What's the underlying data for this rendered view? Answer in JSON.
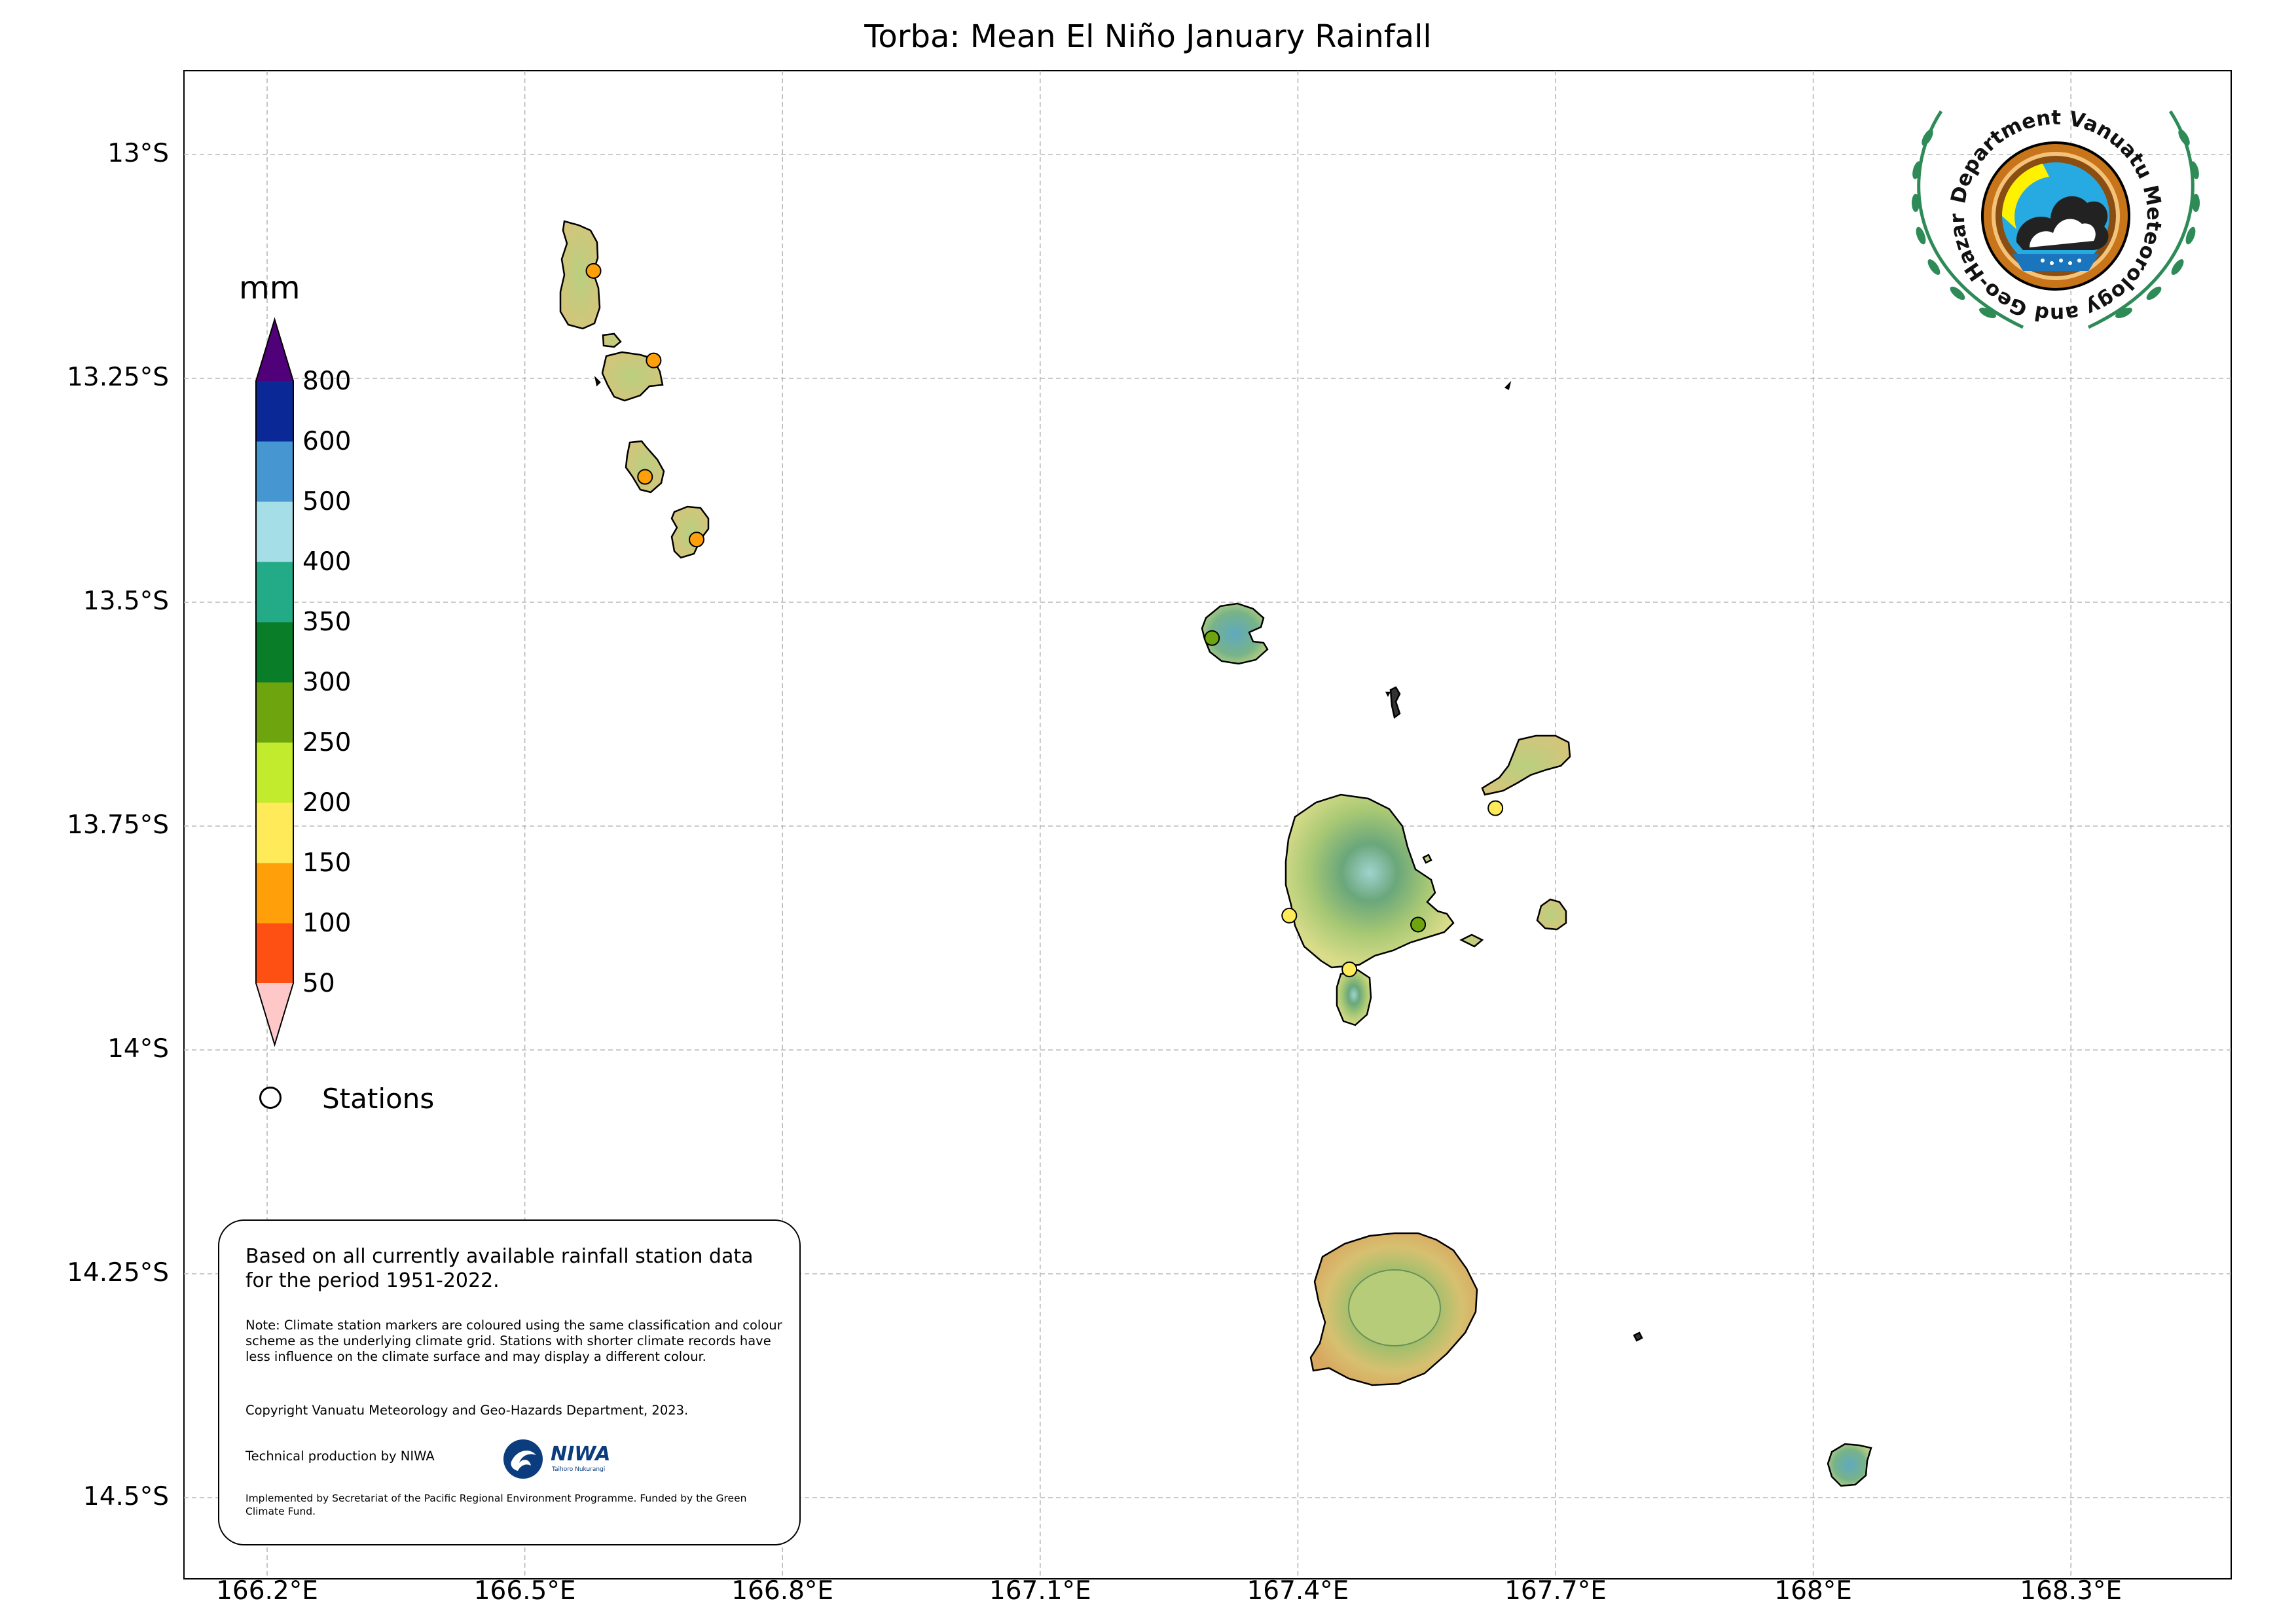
{
  "title": "Torba: Mean El Niño January Rainfall",
  "axes": {
    "lat_ticks": [
      "13°S",
      "13.25°S",
      "13.5°S",
      "13.75°S",
      "14°S",
      "14.25°S",
      "14.5°S"
    ],
    "lon_ticks": [
      "166.2°E",
      "166.5°E",
      "166.8°E",
      "167.1°E",
      "167.4°E",
      "167.7°E",
      "168°E",
      "168.3°E"
    ],
    "lat_values": [
      -13.0,
      -13.25,
      -13.5,
      -13.75,
      -14.0,
      -14.25,
      -14.5
    ],
    "lon_values": [
      166.2,
      166.5,
      166.8,
      167.1,
      167.4,
      167.7,
      168.0,
      168.3
    ],
    "grid": true
  },
  "colorbar": {
    "unit": "mm",
    "labels": [
      "800",
      "600",
      "500",
      "400",
      "350",
      "300",
      "250",
      "200",
      "150",
      "100",
      "50"
    ],
    "bins": [
      {
        "range": "50-100",
        "color": "#ff5014"
      },
      {
        "range": "100-150",
        "color": "#ffa00a"
      },
      {
        "range": "150-200",
        "color": "#ffeb5a"
      },
      {
        "range": "200-250",
        "color": "#c3eb2d"
      },
      {
        "range": "250-300",
        "color": "#6ea50f"
      },
      {
        "range": "300-350",
        "color": "#0a7d28"
      },
      {
        "range": "350-400",
        "color": "#23aa87"
      },
      {
        "range": "400-500",
        "color": "#a5dee6"
      },
      {
        "range": "500-600",
        "color": "#4696d2"
      },
      {
        "range": "600-800",
        "color": "#0a2896"
      }
    ],
    "under_color": "#ffc8c8",
    "over_color": "#500078"
  },
  "legend": {
    "stations_label": "Stations"
  },
  "stations": [
    {
      "lon": 166.58,
      "lat": -13.13,
      "color": "#ffa00a"
    },
    {
      "lon": 166.65,
      "lat": -13.23,
      "color": "#ffa00a"
    },
    {
      "lon": 166.64,
      "lat": -13.36,
      "color": "#ffa00a"
    },
    {
      "lon": 166.7,
      "lat": -13.43,
      "color": "#ffa00a"
    },
    {
      "lon": 167.3,
      "lat": -13.54,
      "color": "#6ea50f"
    },
    {
      "lon": 167.63,
      "lat": -13.73,
      "color": "#ffeb5a"
    },
    {
      "lon": 167.39,
      "lat": -13.85,
      "color": "#ffeb5a"
    },
    {
      "lon": 167.54,
      "lat": -13.86,
      "color": "#6ea50f"
    },
    {
      "lon": 167.46,
      "lat": -13.91,
      "color": "#ffeb5a"
    }
  ],
  "logo": {
    "text": "Department Vanuatu Meteorology and Geo-Hazards"
  },
  "info": {
    "main": "Based on all currently available rainfall station data for the period 1951-2022.",
    "note": "Note: Climate station markers are coloured using the same classification and colour scheme as the underlying climate grid. Stations with shorter climate records have less influence on the climate surface and may display a different colour.",
    "copyright": "Copyright Vanuatu Meteorology and Geo-Hazards Department, 2023.",
    "technical": "Technical production by NIWA",
    "niwa_name": "NIWA",
    "niwa_tagline": "Taihoro Nukurangi",
    "implemented": "Implemented by Secretariat of the Pacific Regional Environment Programme. Funded by the Green Climate Fund."
  }
}
